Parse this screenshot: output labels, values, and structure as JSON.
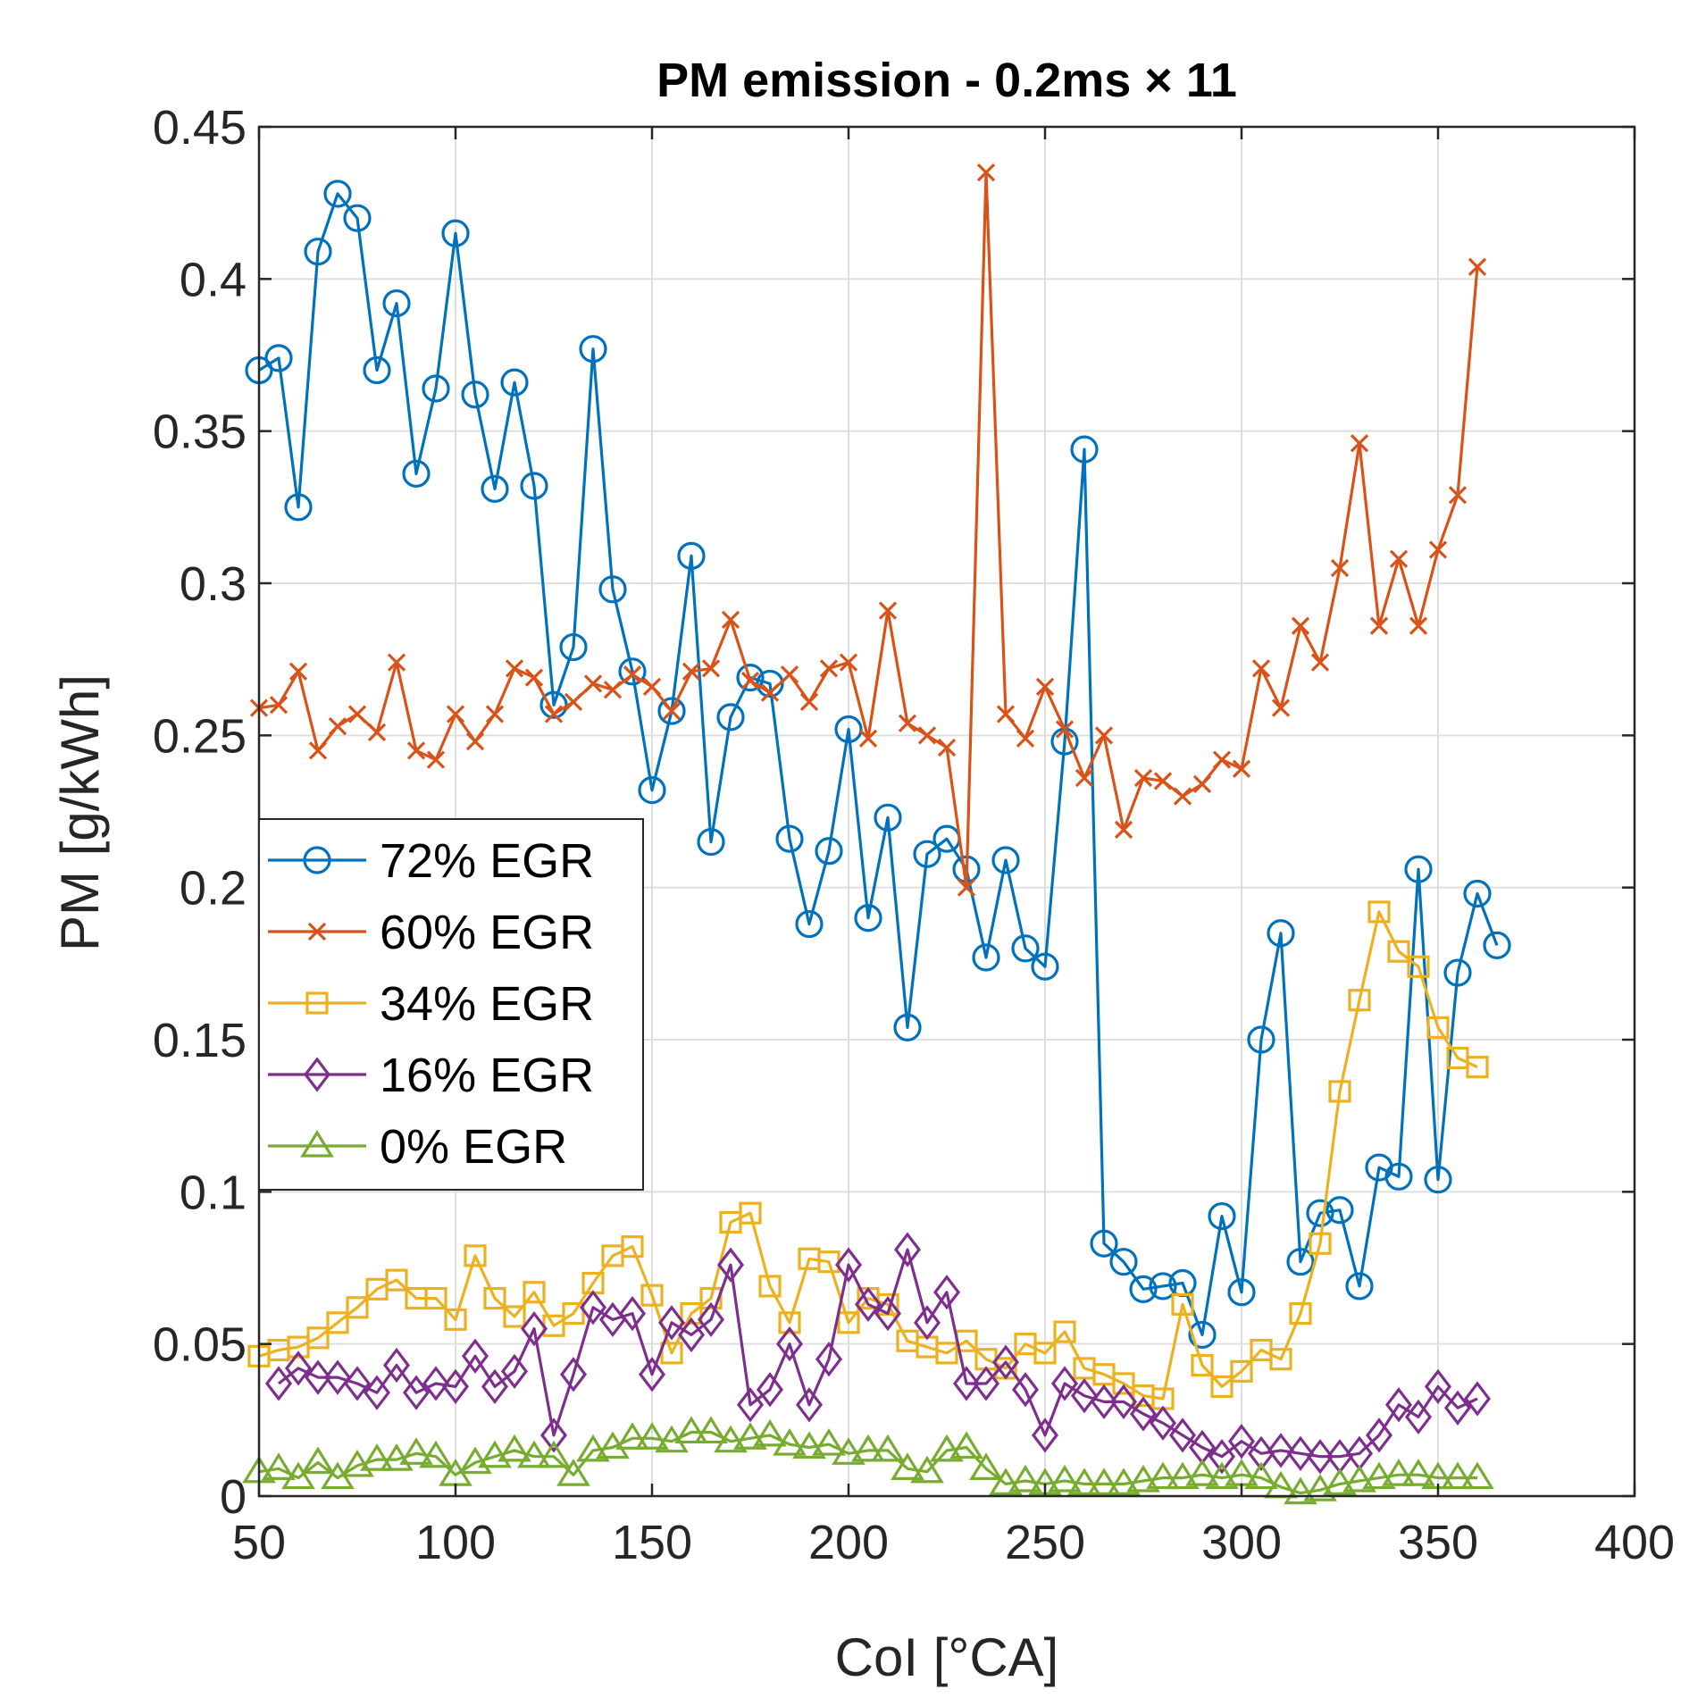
{
  "chart_data": {
    "type": "line",
    "title": "PM emission - 0.2ms × 11",
    "xlabel": "CoI [°CA]",
    "ylabel": "PM [g/kWh]",
    "xlim": [
      50,
      400
    ],
    "ylim": [
      0,
      0.45
    ],
    "xticks": [
      "50",
      "100",
      "150",
      "200",
      "250",
      "300",
      "350",
      "400"
    ],
    "yticks": [
      "0",
      "0.05",
      "0.1",
      "0.15",
      "0.2",
      "0.25",
      "0.3",
      "0.35",
      "0.4",
      "0.45"
    ],
    "grid": true,
    "legend_position": "middle-left",
    "series": [
      {
        "name": "72% EGR",
        "color": "#0072BD",
        "marker": "circle",
        "x": [
          50,
          55,
          60,
          65,
          70,
          75,
          80,
          85,
          90,
          95,
          100,
          105,
          110,
          115,
          120,
          125,
          130,
          135,
          140,
          145,
          150,
          155,
          160,
          165,
          170,
          175,
          180,
          185,
          190,
          195,
          200,
          205,
          210,
          215,
          220,
          225,
          230,
          235,
          240,
          245,
          250,
          255,
          260,
          265,
          270,
          275,
          280,
          285,
          290,
          295,
          300,
          305,
          310,
          315,
          320,
          325,
          330,
          335,
          340,
          345,
          350,
          355,
          360,
          365
        ],
        "y": [
          0.37,
          0.374,
          0.325,
          0.409,
          0.428,
          0.42,
          0.37,
          0.392,
          0.336,
          0.364,
          0.415,
          0.362,
          0.331,
          0.366,
          0.332,
          0.26,
          0.279,
          0.377,
          0.298,
          0.271,
          0.232,
          0.258,
          0.309,
          0.215,
          0.256,
          0.269,
          0.267,
          0.216,
          0.188,
          0.212,
          0.252,
          0.19,
          0.223,
          0.154,
          0.211,
          0.216,
          0.206,
          0.177,
          0.209,
          0.18,
          0.174,
          0.248,
          0.344,
          0.083,
          0.077,
          0.068,
          0.069,
          0.07,
          0.053,
          0.092,
          0.067,
          0.15,
          0.185,
          0.077,
          0.093,
          0.094,
          0.069,
          0.108,
          0.105,
          0.206,
          0.104,
          0.172,
          0.198,
          0.181
        ]
      },
      {
        "name": "60% EGR",
        "color": "#D95319",
        "marker": "x",
        "x": [
          50,
          55,
          60,
          65,
          70,
          75,
          80,
          85,
          90,
          95,
          100,
          105,
          110,
          115,
          120,
          125,
          130,
          135,
          140,
          145,
          150,
          155,
          160,
          165,
          170,
          175,
          180,
          185,
          190,
          195,
          200,
          205,
          210,
          215,
          220,
          225,
          230,
          235,
          240,
          245,
          250,
          255,
          260,
          265,
          270,
          275,
          280,
          285,
          290,
          295,
          300,
          305,
          310,
          315,
          320,
          325,
          330,
          335,
          340,
          345,
          350,
          355,
          360
        ],
        "y": [
          0.259,
          0.26,
          0.271,
          0.245,
          0.253,
          0.257,
          0.251,
          0.274,
          0.245,
          0.242,
          0.257,
          0.248,
          0.257,
          0.272,
          0.269,
          0.257,
          0.261,
          0.267,
          0.265,
          0.27,
          0.266,
          0.258,
          0.271,
          0.272,
          0.288,
          0.268,
          0.264,
          0.27,
          0.261,
          0.272,
          0.274,
          0.249,
          0.291,
          0.254,
          0.25,
          0.246,
          0.2,
          0.435,
          0.257,
          0.249,
          0.266,
          0.252,
          0.236,
          0.25,
          0.219,
          0.236,
          0.235,
          0.23,
          0.234,
          0.242,
          0.239,
          0.272,
          0.259,
          0.286,
          0.274,
          0.305,
          0.346,
          0.286,
          0.308,
          0.286,
          0.311,
          0.329,
          0.404
        ]
      },
      {
        "name": "34% EGR",
        "color": "#EDB120",
        "marker": "square",
        "x": [
          50,
          55,
          60,
          65,
          70,
          75,
          80,
          85,
          90,
          95,
          100,
          105,
          110,
          115,
          120,
          125,
          130,
          135,
          140,
          145,
          150,
          155,
          160,
          165,
          170,
          175,
          180,
          185,
          190,
          195,
          200,
          205,
          210,
          215,
          220,
          225,
          230,
          235,
          240,
          245,
          250,
          255,
          260,
          265,
          270,
          275,
          280,
          285,
          290,
          295,
          300,
          305,
          310,
          315,
          320,
          325,
          330,
          335,
          340,
          345,
          350,
          355,
          360
        ],
        "y": [
          0.046,
          0.048,
          0.049,
          0.052,
          0.057,
          0.062,
          0.068,
          0.071,
          0.065,
          0.065,
          0.058,
          0.079,
          0.065,
          0.059,
          0.067,
          0.056,
          0.06,
          0.07,
          0.079,
          0.082,
          0.066,
          0.047,
          0.06,
          0.065,
          0.09,
          0.093,
          0.069,
          0.057,
          0.078,
          0.077,
          0.057,
          0.065,
          0.063,
          0.051,
          0.049,
          0.047,
          0.051,
          0.045,
          0.042,
          0.05,
          0.047,
          0.054,
          0.042,
          0.04,
          0.037,
          0.033,
          0.032,
          0.063,
          0.043,
          0.036,
          0.041,
          0.048,
          0.045,
          0.06,
          0.083,
          0.133,
          0.163,
          0.192,
          0.179,
          0.174,
          0.154,
          0.144,
          0.141
        ]
      },
      {
        "name": "16% EGR",
        "color": "#7E2F8E",
        "marker": "diamond",
        "x": [
          55,
          60,
          65,
          70,
          75,
          80,
          85,
          90,
          95,
          100,
          105,
          110,
          115,
          120,
          125,
          130,
          135,
          140,
          145,
          150,
          155,
          160,
          165,
          170,
          175,
          180,
          185,
          190,
          195,
          200,
          205,
          210,
          215,
          220,
          225,
          230,
          235,
          240,
          245,
          250,
          255,
          260,
          265,
          270,
          275,
          280,
          285,
          290,
          295,
          300,
          305,
          310,
          315,
          320,
          325,
          330,
          335,
          340,
          345,
          350,
          355,
          360
        ],
        "y": [
          0.037,
          0.042,
          0.039,
          0.039,
          0.037,
          0.034,
          0.043,
          0.034,
          0.037,
          0.036,
          0.046,
          0.036,
          0.041,
          0.055,
          0.02,
          0.04,
          0.062,
          0.058,
          0.06,
          0.04,
          0.057,
          0.053,
          0.058,
          0.076,
          0.03,
          0.035,
          0.05,
          0.03,
          0.045,
          0.076,
          0.063,
          0.06,
          0.081,
          0.057,
          0.067,
          0.037,
          0.037,
          0.044,
          0.035,
          0.02,
          0.037,
          0.033,
          0.031,
          0.031,
          0.027,
          0.024,
          0.02,
          0.016,
          0.013,
          0.018,
          0.014,
          0.015,
          0.014,
          0.013,
          0.013,
          0.014,
          0.02,
          0.03,
          0.026,
          0.036,
          0.029,
          0.032
        ]
      },
      {
        "name": "0% EGR",
        "color": "#77AC30",
        "marker": "triangle",
        "x": [
          50,
          55,
          60,
          65,
          70,
          75,
          80,
          85,
          90,
          95,
          100,
          105,
          110,
          115,
          120,
          125,
          130,
          135,
          140,
          145,
          150,
          155,
          160,
          165,
          170,
          175,
          180,
          185,
          190,
          195,
          200,
          205,
          210,
          215,
          220,
          225,
          230,
          235,
          240,
          245,
          250,
          255,
          260,
          265,
          270,
          275,
          280,
          285,
          290,
          295,
          300,
          305,
          310,
          315,
          320,
          325,
          330,
          335,
          340,
          345,
          350,
          355,
          360
        ],
        "y": [
          0.008,
          0.009,
          0.006,
          0.011,
          0.006,
          0.01,
          0.012,
          0.012,
          0.014,
          0.013,
          0.007,
          0.011,
          0.013,
          0.015,
          0.013,
          0.013,
          0.007,
          0.015,
          0.016,
          0.019,
          0.019,
          0.018,
          0.021,
          0.021,
          0.018,
          0.019,
          0.02,
          0.017,
          0.016,
          0.017,
          0.014,
          0.015,
          0.015,
          0.009,
          0.008,
          0.015,
          0.016,
          0.009,
          0.004,
          0.005,
          0.004,
          0.005,
          0.004,
          0.004,
          0.004,
          0.005,
          0.006,
          0.006,
          0.007,
          0.006,
          0.007,
          0.006,
          0.003,
          0.001,
          0.002,
          0.004,
          0.005,
          0.006,
          0.007,
          0.007,
          0.006,
          0.006,
          0.006
        ]
      }
    ]
  }
}
